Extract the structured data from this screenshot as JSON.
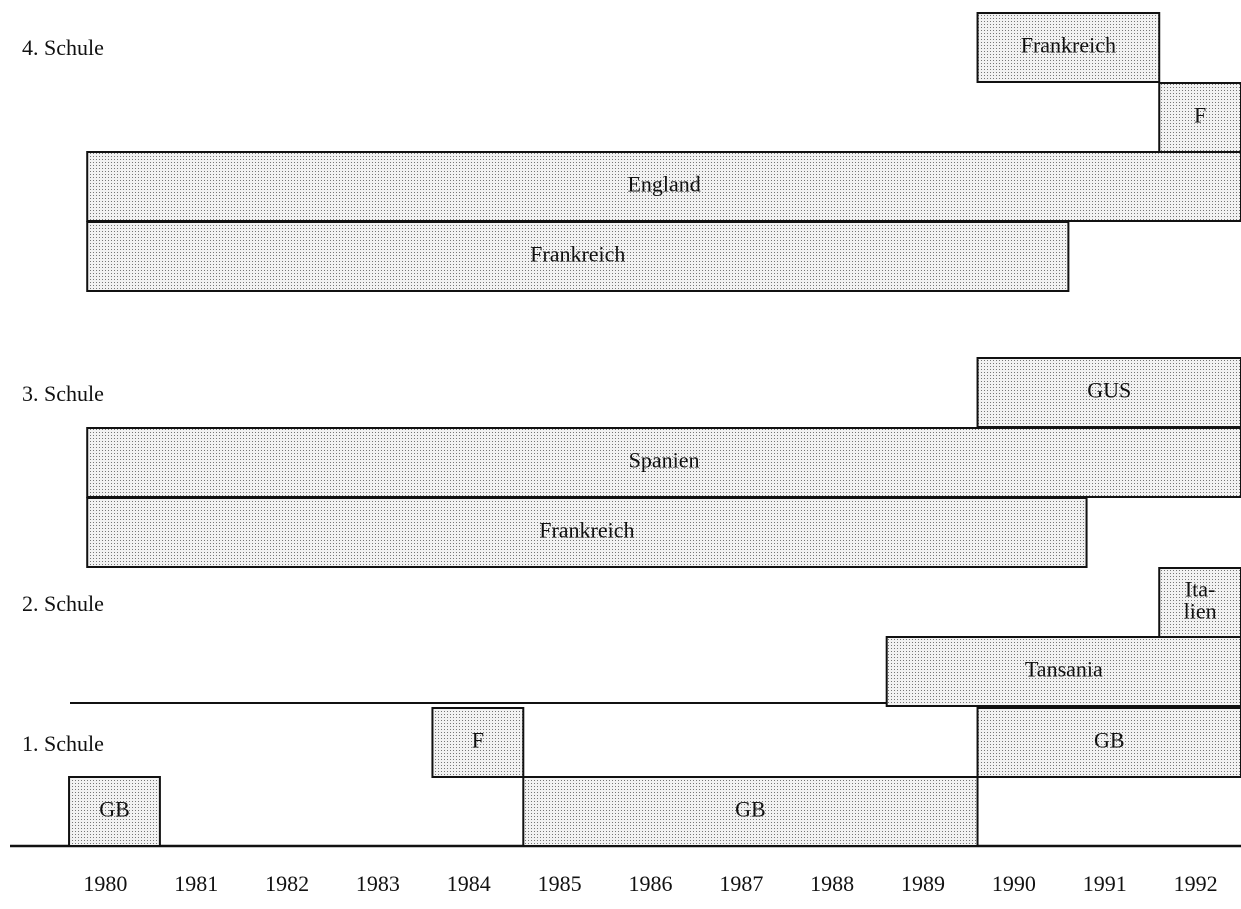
{
  "chart_data": {
    "type": "gantt",
    "xlim": [
      1978.95,
      1992.5
    ],
    "xticks": [
      1980,
      1981,
      1982,
      1983,
      1984,
      1985,
      1986,
      1987,
      1988,
      1989,
      1990,
      1991,
      1992
    ],
    "schools": [
      {
        "label": "4. Schule",
        "lanes": [
          [
            {
              "label": [
                "Frankreich"
              ],
              "start": 1989.6,
              "end": 1991.6
            }
          ],
          [
            {
              "label": [
                "F"
              ],
              "start": 1991.6,
              "end": 1992.5
            }
          ],
          [
            {
              "label": [
                "England"
              ],
              "start": 1979.8,
              "end": 1992.5
            }
          ],
          [
            {
              "label": [
                "Frankreich"
              ],
              "start": 1979.8,
              "end": 1990.6
            }
          ]
        ]
      },
      {
        "label": "3. Schule",
        "lanes": [
          [
            {
              "label": [
                "GUS"
              ],
              "start": 1989.6,
              "end": 1992.5
            }
          ],
          [
            {
              "label": [
                "Spanien"
              ],
              "start": 1979.8,
              "end": 1992.5
            }
          ],
          [
            {
              "label": [
                "Frankreich"
              ],
              "start": 1979.8,
              "end": 1990.8
            }
          ]
        ]
      },
      {
        "label": "2. Schule",
        "lanes": [
          [
            {
              "label": [
                "Ita-",
                "lien"
              ],
              "start": 1991.6,
              "end": 1992.5
            }
          ],
          [
            {
              "label": [
                "Tansania"
              ],
              "start": 1988.6,
              "end": 1992.5
            }
          ]
        ]
      },
      {
        "label": "1. Schule",
        "lanes": [
          [
            {
              "label": [
                "F"
              ],
              "start": 1983.6,
              "end": 1984.6
            },
            {
              "label": [
                "GB"
              ],
              "start": 1989.6,
              "end": 1992.5
            }
          ],
          [
            {
              "label": [
                "GB"
              ],
              "start": 1979.6,
              "end": 1980.6
            },
            {
              "label": [
                "GB"
              ],
              "start": 1984.6,
              "end": 1989.6
            }
          ]
        ]
      }
    ]
  }
}
